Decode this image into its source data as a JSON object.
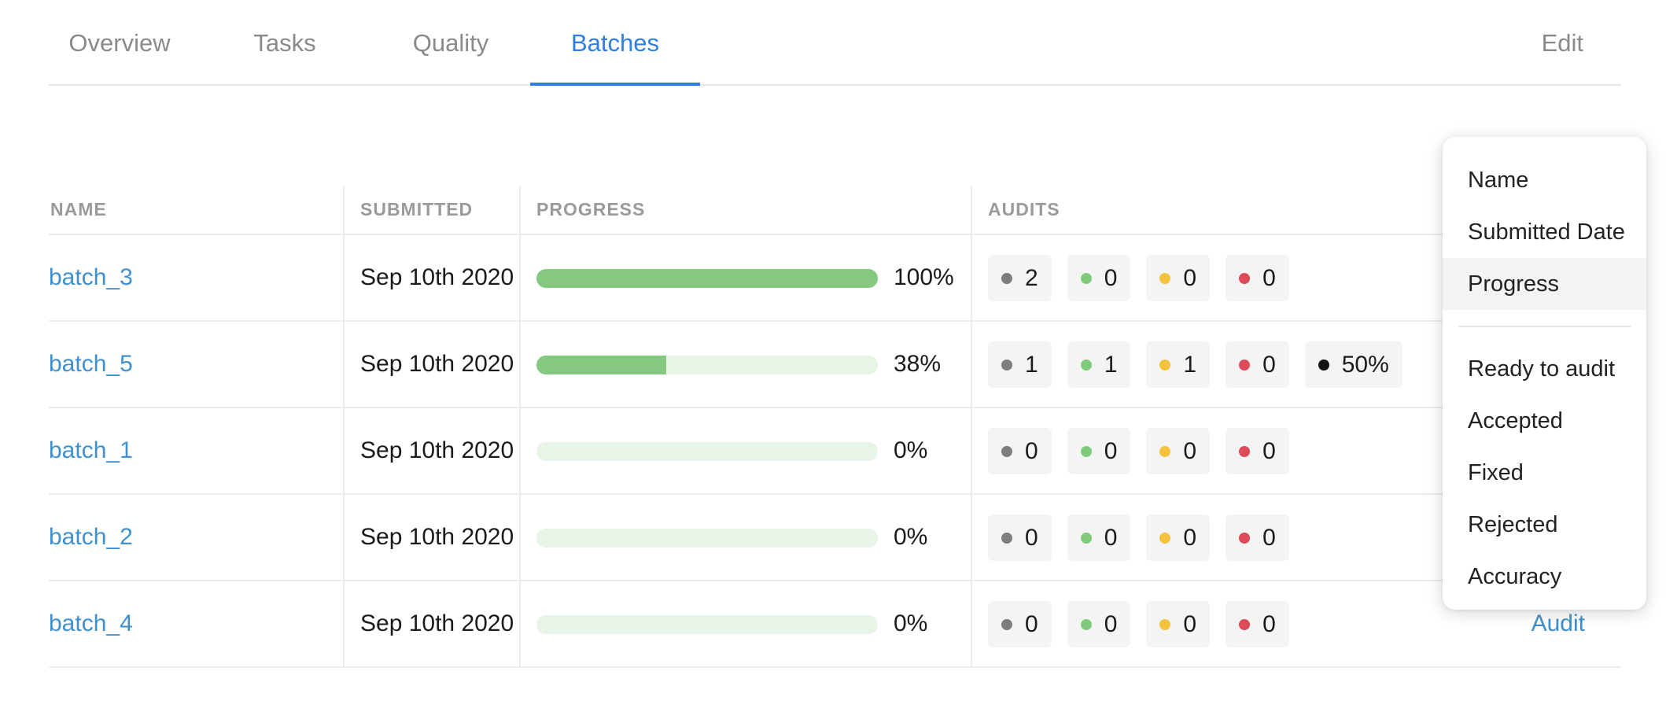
{
  "tabs": {
    "overview": "Overview",
    "tasks": "Tasks",
    "quality": "Quality",
    "batches": "Batches",
    "edit": "Edit"
  },
  "table": {
    "headers": {
      "name": "NAME",
      "submitted": "SUBMITTED",
      "progress": "PROGRESS",
      "audits": "AUDITS"
    },
    "rows": [
      {
        "name": "batch_3",
        "submitted": "Sep 10th 2020",
        "progress": 100,
        "progress_label": "100%",
        "audits": {
          "gray": "2",
          "green": "0",
          "yellow": "0",
          "red": "0"
        }
      },
      {
        "name": "batch_5",
        "submitted": "Sep 10th 2020",
        "progress": 38,
        "progress_label": "38%",
        "audits": {
          "gray": "1",
          "green": "1",
          "yellow": "1",
          "red": "0",
          "accuracy": "50%"
        }
      },
      {
        "name": "batch_1",
        "submitted": "Sep 10th 2020",
        "progress": 0,
        "progress_label": "0%",
        "audits": {
          "gray": "0",
          "green": "0",
          "yellow": "0",
          "red": "0"
        }
      },
      {
        "name": "batch_2",
        "submitted": "Sep 10th 2020",
        "progress": 0,
        "progress_label": "0%",
        "audits": {
          "gray": "0",
          "green": "0",
          "yellow": "0",
          "red": "0"
        }
      },
      {
        "name": "batch_4",
        "submitted": "Sep 10th 2020",
        "progress": 0,
        "progress_label": "0%",
        "audits": {
          "gray": "0",
          "green": "0",
          "yellow": "0",
          "red": "0"
        },
        "action": "Audit"
      }
    ]
  },
  "dropdown": {
    "sort_options": [
      "Name",
      "Submitted Date",
      "Progress"
    ],
    "highlighted": "Progress",
    "column_options": [
      "Ready to audit",
      "Accepted",
      "Fixed",
      "Rejected",
      "Accuracy"
    ]
  },
  "colors": {
    "accent": "#2f7ee6",
    "link": "#3f90cc",
    "progress_fill": "#85c880",
    "progress_track": "#e7f4e7",
    "dot_gray": "#7d7d7d",
    "dot_green": "#7fcb7b",
    "dot_yellow": "#f4c23f",
    "dot_red": "#dd4b5a",
    "dot_black": "#111111"
  }
}
